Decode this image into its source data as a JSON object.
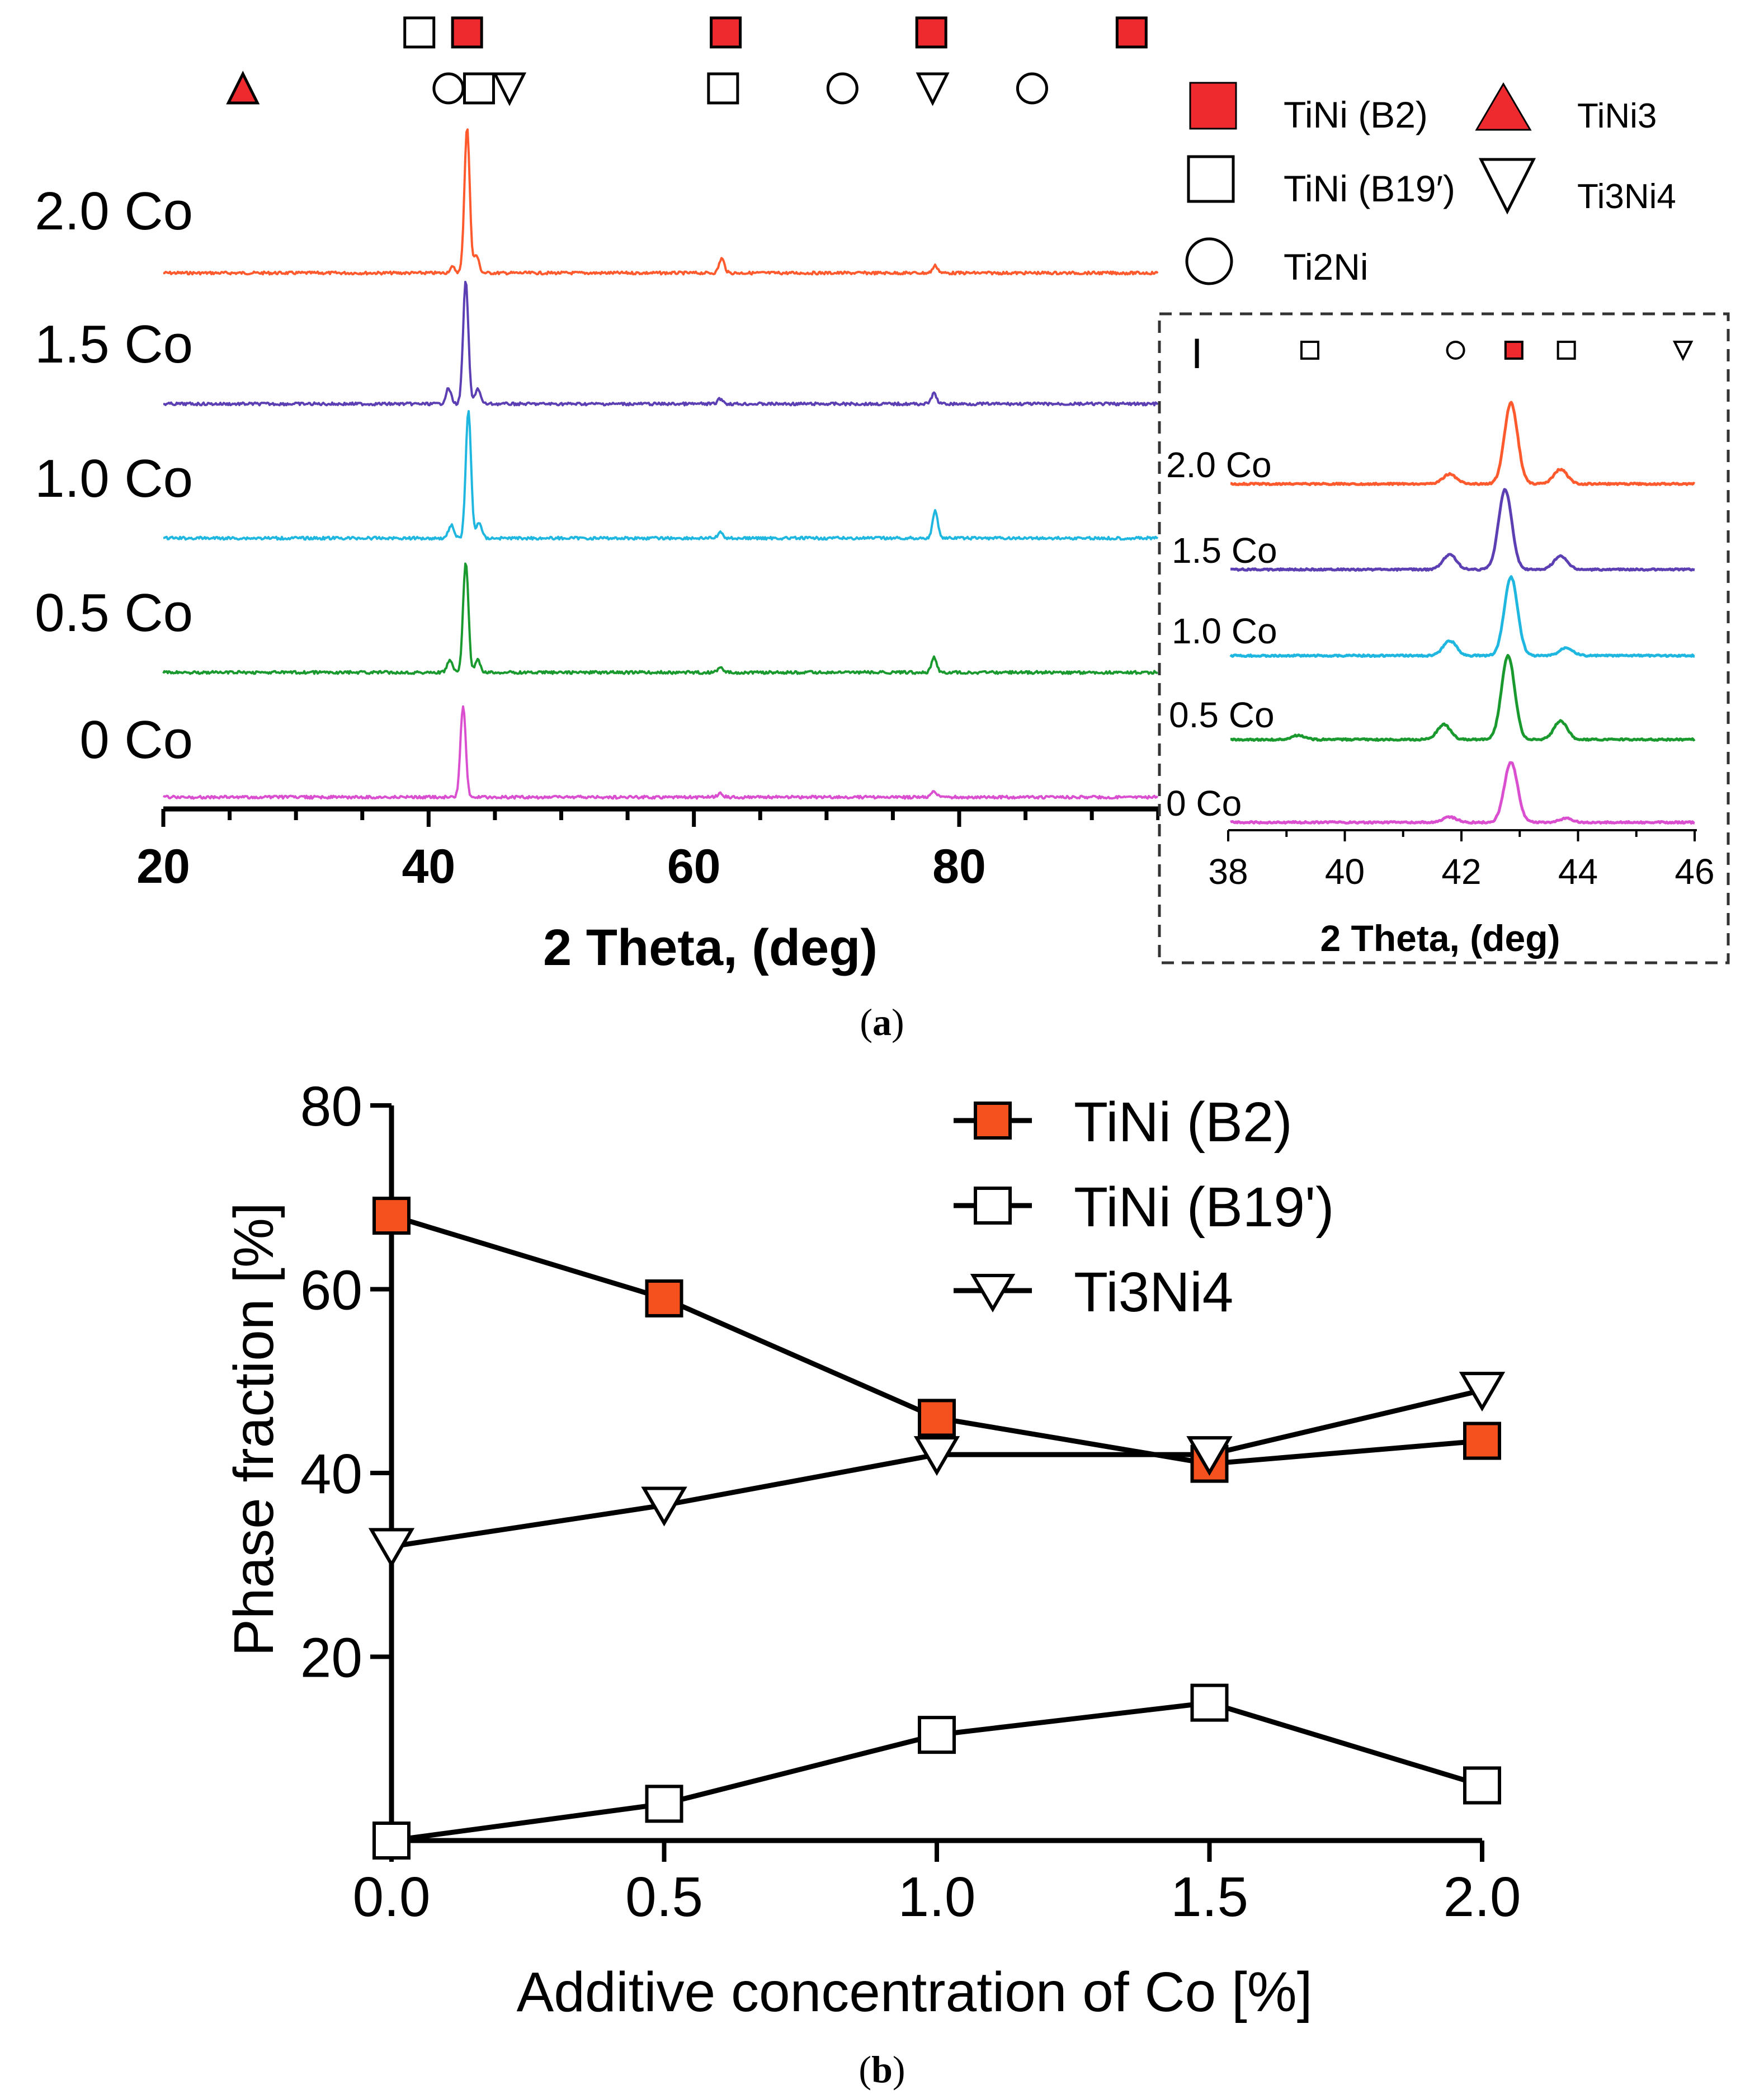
{
  "panel_a": {
    "caption_open": "(",
    "caption_letter": "a",
    "caption_close": ")",
    "chart_data": {
      "type": "line",
      "title": "",
      "xlabel": "2 Theta, (deg)",
      "ylabel": "",
      "xlim": [
        20,
        95
      ],
      "xticks": [
        20,
        40,
        60,
        80
      ],
      "series": [
        {
          "name": "2.0 Co",
          "color": "#ff5a2d",
          "peaks": [
            [
              41.8,
              0.04
            ],
            [
              42.9,
              1.0
            ],
            [
              43.6,
              0.12
            ],
            [
              62.1,
              0.1
            ],
            [
              78.2,
              0.05
            ]
          ]
        },
        {
          "name": "1.5 Co",
          "color": "#5b3fb3",
          "peaks": [
            [
              41.5,
              0.12
            ],
            [
              42.8,
              0.95
            ],
            [
              43.7,
              0.12
            ],
            [
              62.0,
              0.04
            ],
            [
              78.1,
              0.08
            ]
          ]
        },
        {
          "name": "1.0 Co",
          "color": "#1fb7e0",
          "peaks": [
            [
              41.7,
              0.1
            ],
            [
              43.0,
              0.95
            ],
            [
              43.8,
              0.12
            ],
            [
              62.0,
              0.04
            ],
            [
              78.2,
              0.2
            ]
          ]
        },
        {
          "name": "0.5 Co",
          "color": "#1a9a2e",
          "peaks": [
            [
              41.6,
              0.1
            ],
            [
              42.8,
              0.9
            ],
            [
              43.7,
              0.1
            ],
            [
              62.0,
              0.04
            ],
            [
              78.1,
              0.12
            ]
          ]
        },
        {
          "name": "0 Co",
          "color": "#d94fd0",
          "peaks": [
            [
              42.6,
              0.82
            ],
            [
              62.0,
              0.03
            ],
            [
              78.1,
              0.05
            ]
          ]
        }
      ],
      "phase_markers": [
        {
          "phase": "TiNi (B19')",
          "x": 39.3
        },
        {
          "phase": "TiNi (B2)",
          "x": 42.9
        },
        {
          "phase": "TiNi (B2)",
          "x": 62.4
        },
        {
          "phase": "TiNi (B2)",
          "x": 77.9
        },
        {
          "phase": "TiNi (B2)",
          "x": 93.0
        },
        {
          "phase": "TiNi3",
          "x": 26.0
        },
        {
          "phase": "Ti2Ni",
          "x": 41.5
        },
        {
          "phase": "TiNi (B19')",
          "x": 43.8
        },
        {
          "phase": "Ti3Ni4",
          "x": 46.1
        },
        {
          "phase": "TiNi (B19')",
          "x": 62.2
        },
        {
          "phase": "Ti2Ni",
          "x": 71.2
        },
        {
          "phase": "Ti3Ni4",
          "x": 78.0
        },
        {
          "phase": "Ti2Ni",
          "x": 85.5
        }
      ],
      "legend": [
        {
          "label": "TiNi (B2)",
          "symbol": "square-filled"
        },
        {
          "label": "TiNi3",
          "symbol": "triangle-up-filled"
        },
        {
          "label": "TiNi (B19′)",
          "symbol": "square-open"
        },
        {
          "label": "Ti3Ni4",
          "symbol": "triangle-down-open"
        },
        {
          "label": "Ti2Ni",
          "symbol": "circle-open"
        }
      ],
      "inset": {
        "type": "line",
        "xlabel": "2 Theta, (deg)",
        "xlim": [
          38,
          46
        ],
        "xticks": [
          38,
          40,
          42,
          44,
          46
        ],
        "intensity_marker": "I",
        "phase_markers": [
          {
            "phase": "TiNi (B19')",
            "x": 39.4
          },
          {
            "phase": "Ti2Ni",
            "x": 41.9
          },
          {
            "phase": "TiNi (B2)",
            "x": 42.9
          },
          {
            "phase": "TiNi (B19')",
            "x": 43.8
          },
          {
            "phase": "Ti3Ni4",
            "x": 45.8
          }
        ],
        "series": [
          {
            "name": "2.0 Co",
            "color": "#ff5a2d",
            "peaks": [
              [
                41.8,
                0.12
              ],
              [
                42.85,
                1.0
              ],
              [
                43.7,
                0.18
              ]
            ]
          },
          {
            "name": "1.5 Co",
            "color": "#5b3fb3",
            "peaks": [
              [
                41.8,
                0.18
              ],
              [
                42.75,
                0.95
              ],
              [
                43.7,
                0.16
              ]
            ]
          },
          {
            "name": "1.0 Co",
            "color": "#1fb7e0",
            "peaks": [
              [
                41.8,
                0.18
              ],
              [
                42.85,
                0.95
              ],
              [
                43.8,
                0.1
              ]
            ]
          },
          {
            "name": "0.5 Co",
            "color": "#1a9a2e",
            "peaks": [
              [
                39.2,
                0.05
              ],
              [
                41.7,
                0.18
              ],
              [
                42.8,
                1.0
              ],
              [
                43.7,
                0.22
              ]
            ]
          },
          {
            "name": "0 Co",
            "color": "#d94fd0",
            "peaks": [
              [
                41.8,
                0.08
              ],
              [
                42.85,
                0.9
              ],
              [
                43.8,
                0.06
              ]
            ]
          }
        ]
      }
    }
  },
  "panel_b": {
    "caption_open": "(",
    "caption_letter": "b",
    "caption_close": ")",
    "chart_data": {
      "type": "line",
      "title": "",
      "xlabel": "Additive concentration of Co [%]",
      "ylabel": "Phase fraction [%]",
      "xlim": [
        0,
        2.0
      ],
      "ylim": [
        0,
        80
      ],
      "xticks": [
        "0.0",
        "0.5",
        "1.0",
        "1.5",
        "2.0"
      ],
      "yticks": [
        "20",
        "40",
        "60",
        "80"
      ],
      "x": [
        0.0,
        0.5,
        1.0,
        1.5,
        2.0
      ],
      "series": [
        {
          "name": "TiNi (B2)",
          "marker": "square-filled",
          "values": [
            68,
            59,
            46,
            41,
            43.5
          ]
        },
        {
          "name": "TiNi (B19')",
          "marker": "square-open",
          "values": [
            0,
            4,
            11.5,
            15,
            6
          ]
        },
        {
          "name": "Ti3Ni4",
          "marker": "triangle-down-open",
          "values": [
            32,
            36.5,
            42,
            42,
            49
          ]
        }
      ]
    }
  },
  "colors": {
    "red_marker": "#ee2a2f",
    "orange_marker": "#f4511e",
    "axis": "#000000"
  }
}
